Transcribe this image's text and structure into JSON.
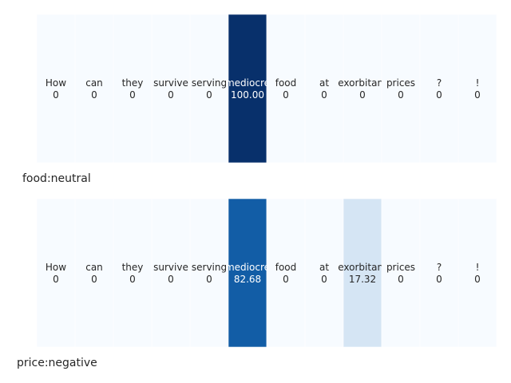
{
  "chart_data": [
    {
      "type": "heatmap",
      "categories": [
        "How",
        "can",
        "they",
        "survive",
        "serving",
        "mediocre",
        "food",
        "at",
        "exorbitant",
        "prices",
        "?",
        "!"
      ],
      "values": [
        0,
        0,
        0,
        0,
        0,
        100.0,
        0,
        0,
        0,
        0,
        0,
        0
      ],
      "value_labels": [
        "0",
        "0",
        "0",
        "0",
        "0",
        "100.00",
        "0",
        "0",
        "0",
        "0",
        "0",
        "0"
      ],
      "xlabel": "food:neutral",
      "vmin": 0,
      "vmax": 100,
      "colormap": "Blues",
      "grid": false
    },
    {
      "type": "heatmap",
      "categories": [
        "How",
        "can",
        "they",
        "survive",
        "serving",
        "mediocre",
        "food",
        "at",
        "exorbitant",
        "prices",
        "?",
        "!"
      ],
      "values": [
        0,
        0,
        0,
        0,
        0,
        82.68,
        0,
        0,
        17.32,
        0,
        0,
        0
      ],
      "value_labels": [
        "0",
        "0",
        "0",
        "0",
        "0",
        "82.68",
        "0",
        "0",
        "17.32",
        "0",
        "0",
        "0"
      ],
      "xlabel": "price:negative",
      "vmin": 0,
      "vmax": 100,
      "colormap": "Blues",
      "grid": false
    }
  ]
}
